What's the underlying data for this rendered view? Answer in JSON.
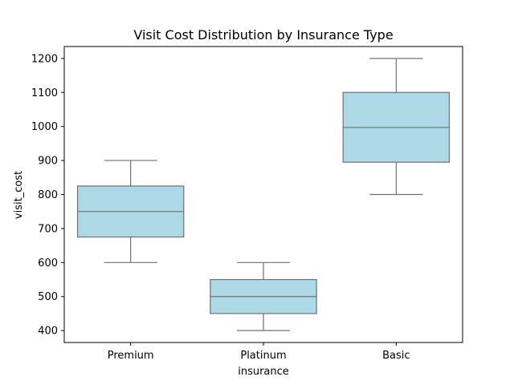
{
  "chart_data": {
    "type": "box",
    "title": "Visit Cost Distribution by Insurance Type",
    "xlabel": "insurance",
    "ylabel": "visit_cost",
    "ylim": [
      365,
      1235
    ],
    "yticks": [
      400,
      500,
      600,
      700,
      800,
      900,
      1000,
      1100,
      1200
    ],
    "grid": false,
    "box_color": "#add8e6",
    "line_color": "#707070",
    "categories": [
      "Premium",
      "Platinum",
      "Basic"
    ],
    "boxes": [
      {
        "category": "Premium",
        "min": 600,
        "q1": 675,
        "median": 750,
        "q3": 825,
        "max": 900
      },
      {
        "category": "Platinum",
        "min": 400,
        "q1": 450,
        "median": 500,
        "q3": 550,
        "max": 600
      },
      {
        "category": "Basic",
        "min": 800,
        "q1": 895,
        "median": 997,
        "q3": 1100,
        "max": 1200
      }
    ]
  }
}
